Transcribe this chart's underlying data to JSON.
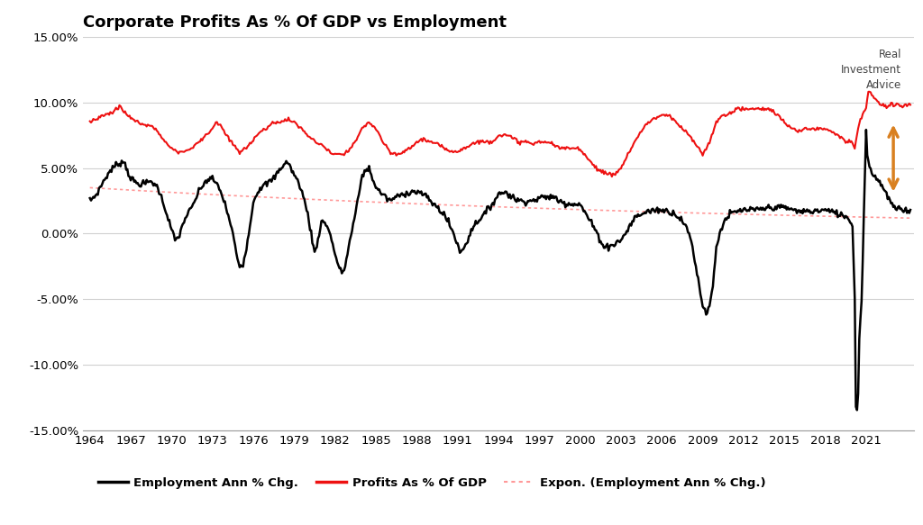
{
  "title": "Corporate Profits As % Of GDP vs Employment",
  "title_fontsize": 13,
  "background_color": "#ffffff",
  "grid_color": "#d0d0d0",
  "employment_color": "#000000",
  "profits_color": "#ee1111",
  "expon_color": "#ff9999",
  "arrow_color": "#d98020",
  "ylim": [
    -15.0,
    15.0
  ],
  "yticks": [
    -15.0,
    -10.0,
    -5.0,
    0.0,
    5.0,
    10.0,
    15.0
  ],
  "xlim_start": 1963.5,
  "xlim_end": 2024.5,
  "xticks": [
    1964,
    1967,
    1970,
    1973,
    1976,
    1979,
    1982,
    1985,
    1988,
    1991,
    1994,
    1997,
    2000,
    2003,
    2006,
    2009,
    2012,
    2015,
    2018,
    2021
  ],
  "legend_labels": [
    "Employment Ann % Chg.",
    "Profits As % Of GDP",
    "Expon. (Employment Ann % Chg.)"
  ],
  "legend_line_colors": [
    "#000000",
    "#ee1111",
    "#ff9999"
  ],
  "watermark_text": "Real\nInvestment\nAdvice"
}
